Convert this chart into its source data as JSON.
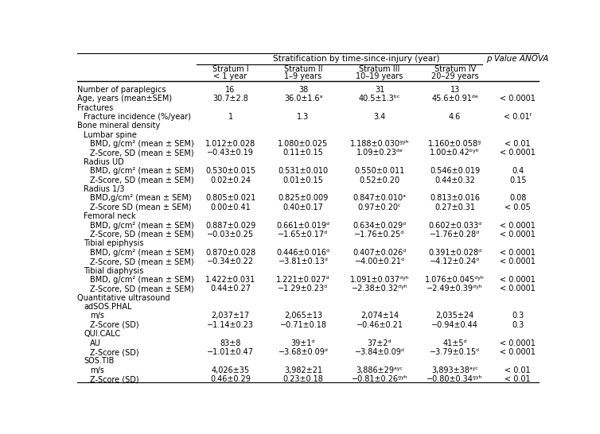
{
  "title": "Stratification by time-since-injury (year)",
  "p_value_header": "p Value ANOVA",
  "col_headers_line1": [
    "Stratum I",
    "Stratum II",
    "Stratum III",
    "Stratum IV"
  ],
  "col_headers_line2": [
    "< 1 year",
    "1–9 years",
    "10–19 years",
    "20–29 years"
  ],
  "rows": [
    {
      "label": "Number of paraplegics",
      "indent": 0,
      "values": [
        "16",
        "38",
        "31",
        "13"
      ],
      "pval": ""
    },
    {
      "label": "Age, years (mean±SEM)",
      "indent": 0,
      "values": [
        "30.7±2.8",
        "36.0±1.6ᵃ",
        "40.5±1.3ᵇᶜ",
        "45.6±0.91ᵈᵉ"
      ],
      "pval": "< 0.0001"
    },
    {
      "label": "Fractures",
      "indent": 0,
      "values": [
        "",
        "",
        "",
        ""
      ],
      "pval": ""
    },
    {
      "label": "Fracture incidence (%/year)",
      "indent": 1,
      "values": [
        "1",
        "1.3",
        "3.4",
        "4.6"
      ],
      "pval": "< 0.01ᶠ"
    },
    {
      "label": "Bone mineral density",
      "indent": 0,
      "values": [
        "",
        "",
        "",
        ""
      ],
      "pval": ""
    },
    {
      "label": "Lumbar spine",
      "indent": 1,
      "values": [
        "",
        "",
        "",
        ""
      ],
      "pval": ""
    },
    {
      "label": "BMD, g/cm² (mean ± SEM)",
      "indent": 2,
      "values": [
        "1.012±0.028",
        "1.080±0.025",
        "1.188±0.030ᵍʸʰ",
        "1.160±0.058ᵍ"
      ],
      "pval": "< 0.01"
    },
    {
      "label": "Z-Score, SD (mean ± SEM)",
      "indent": 2,
      "values": [
        "−0.43±0.19",
        "0.11±0.15",
        "1.09±0.23ᵈᵉ",
        "1.00±0.42ᵇʸʰ"
      ],
      "pval": "< 0.0001"
    },
    {
      "label": "Radius UD",
      "indent": 1,
      "values": [
        "",
        "",
        "",
        ""
      ],
      "pval": ""
    },
    {
      "label": "BMD, g/cm² (mean ± SEM)",
      "indent": 2,
      "values": [
        "0.530±0.015",
        "0.531±0.010",
        "0.550±0.011",
        "0.546±0.019"
      ],
      "pval": "0.4"
    },
    {
      "label": "Z-Score, SD (mean ± SEM)",
      "indent": 2,
      "values": [
        "0.02±0.24",
        "0.01±0.15",
        "0.52±0.20",
        "0.44±0.32"
      ],
      "pval": "0.15"
    },
    {
      "label": "Radius 1/3",
      "indent": 1,
      "values": [
        "",
        "",
        "",
        ""
      ],
      "pval": ""
    },
    {
      "label": "BMD,g/cm² (mean ± SEM)",
      "indent": 2,
      "values": [
        "0.805±0.021",
        "0.825±0.009",
        "0.847±0.010ᵃ",
        "0.813±0.016"
      ],
      "pval": "0.08"
    },
    {
      "label": "Z-Score SD (mean ± SEM)",
      "indent": 2,
      "values": [
        "0.00±0.41",
        "0.40±0.17",
        "0.97±0.20ᶜ",
        "0.27±0.31"
      ],
      "pval": "< 0.05"
    },
    {
      "label": "Femoral neck",
      "indent": 1,
      "values": [
        "",
        "",
        "",
        ""
      ],
      "pval": ""
    },
    {
      "label": "BMD, g/cm² (mean ± SEM)",
      "indent": 2,
      "values": [
        "0.887±0.029",
        "0.661±0.019ᵈ",
        "0.634±0.029ᵈ",
        "0.602±0.033ᵈ"
      ],
      "pval": "< 0.0001"
    },
    {
      "label": "Z-Score, SD (mean ± SEM)",
      "indent": 2,
      "values": [
        "−0.03±0.25",
        "−1.65±0.17ᵈ",
        "−1.76±0.25ᵈ",
        "−1.76±0.28ᵈ"
      ],
      "pval": "< 0.0001"
    },
    {
      "label": "Tibial epiphysis",
      "indent": 1,
      "values": [
        "",
        "",
        "",
        ""
      ],
      "pval": ""
    },
    {
      "label": "BMD, g/cm² (mean ± SEM)",
      "indent": 2,
      "values": [
        "0.870±0.028",
        "0.446±0.016ᵈ",
        "0.407±0.026ᵈ",
        "0.391±0.028ᵈ"
      ],
      "pval": "< 0.0001"
    },
    {
      "label": "Z-Score, SD (mean ± SEM)",
      "indent": 2,
      "values": [
        "−0.34±0.22",
        "−3.81±0.13ᵈ",
        "−4.00±0.21ᵈ",
        "−4.12±0.24ᵈ"
      ],
      "pval": "< 0.0001"
    },
    {
      "label": "Tibial diaphysis",
      "indent": 1,
      "values": [
        "",
        "",
        "",
        ""
      ],
      "pval": ""
    },
    {
      "label": "BMD, g/cm² (mean ± SEM)",
      "indent": 2,
      "values": [
        "1.422±0.031",
        "1.221±0.027ᵈ",
        "1.091±0.037ᵈʸʰ",
        "1.076±0.045ᵈʸʰ"
      ],
      "pval": "< 0.0001"
    },
    {
      "label": "Z-Score, SD (mean ± SEM)",
      "indent": 2,
      "values": [
        "0.44±0.27",
        "−1.29±0.23ᵈ",
        "−2.38±0.32ᵈʸʰ",
        "−2.49±0.39ᵈʸʰ"
      ],
      "pval": "< 0.0001"
    },
    {
      "label": "Quantitative ultrasound",
      "indent": 0,
      "values": [
        "",
        "",
        "",
        ""
      ],
      "pval": ""
    },
    {
      "label": "adSOS.PHAL",
      "indent": 1,
      "values": [
        "",
        "",
        "",
        ""
      ],
      "pval": ""
    },
    {
      "label": "m/s",
      "indent": 2,
      "values": [
        "2,037±17",
        "2,065±13",
        "2,074±14",
        "2,035±24"
      ],
      "pval": "0.3"
    },
    {
      "label": "Z-Score (SD)",
      "indent": 2,
      "values": [
        "−1.14±0.23",
        "−0.71±0.18",
        "−0.46±0.21",
        "−0.94±0.44"
      ],
      "pval": "0.3"
    },
    {
      "label": "QUI.CALC",
      "indent": 1,
      "values": [
        "",
        "",
        "",
        ""
      ],
      "pval": ""
    },
    {
      "label": "AU",
      "indent": 2,
      "values": [
        "83±8",
        "39±1ᵈ",
        "37±2ᵈ",
        "41±5ᵈ"
      ],
      "pval": "< 0.0001"
    },
    {
      "label": "Z-Score (SD)",
      "indent": 2,
      "values": [
        "−1.01±0.47",
        "−3.68±0.09ᵈ",
        "−3.84±0.09ᵈ",
        "−3.79±0.15ᵈ"
      ],
      "pval": "< 0.0001"
    },
    {
      "label": "SOS.TIB",
      "indent": 1,
      "values": [
        "",
        "",
        "",
        ""
      ],
      "pval": ""
    },
    {
      "label": "m/s",
      "indent": 2,
      "values": [
        "4,026±35",
        "3,982±21",
        "3,886±29ᵃʸᶜ",
        "3,893±38ᵃʸᶜ"
      ],
      "pval": "< 0.01"
    },
    {
      "label": "Z-Score (SD)",
      "indent": 2,
      "values": [
        "0.46±0.29",
        "0.23±0.18",
        "−0.81±0.26ᵍʸʰ",
        "−0.80±0.34ᵍʸʰ"
      ],
      "pval": "< 0.01"
    }
  ],
  "background_color": "#ffffff",
  "text_color": "#000000",
  "font_size": 7.0,
  "header_font_size": 7.5
}
